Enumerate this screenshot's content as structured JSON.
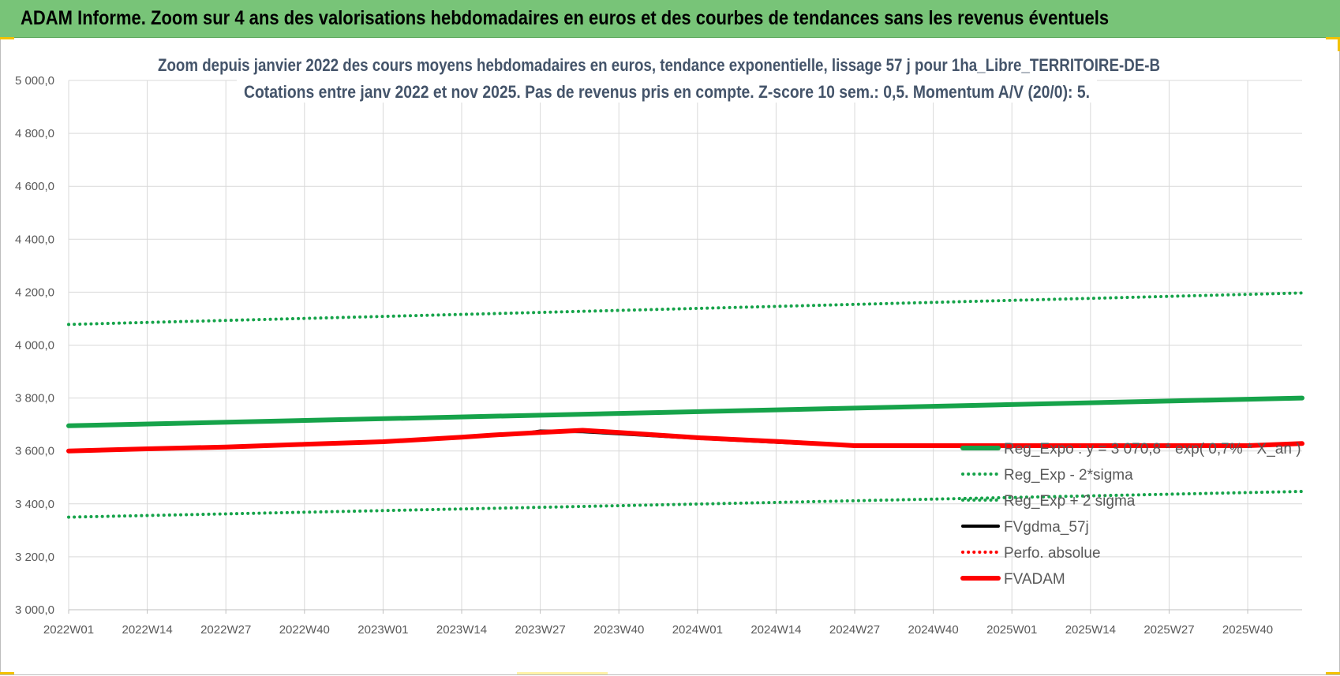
{
  "banner": {
    "title": "ADAM Informe. Zoom sur 4 ans des valorisations hebdomadaires en euros et des courbes de tendances sans les revenus éventuels"
  },
  "colors": {
    "banner_bg": "#78c478",
    "green": "#16a34a",
    "red": "#ff0000",
    "black": "#000000",
    "grid": "#d9d9d9",
    "title_text": "#44546a"
  },
  "chart_data": {
    "type": "line",
    "title_line1": "Zoom depuis janvier 2022 des cours moyens hebdomadaires en euros, tendance exponentielle, lissage 57 j pour 1ha_Libre_TERRITOIRE-DE-B",
    "title_line2": "Cotations entre janv 2022 et nov 2025. Pas de revenus pris en compte. Z-score 10 sem.: 0,5. Momentum A/V (20/0): 5.",
    "x_tick_labels": [
      "2022W01",
      "2022W14",
      "2022W27",
      "2022W40",
      "2023W01",
      "2023W14",
      "2023W27",
      "2023W40",
      "2024W01",
      "2024W14",
      "2024W27",
      "2024W40",
      "2025W01",
      "2025W14",
      "2025W27",
      "2025W40"
    ],
    "x_range_weeks": [
      0,
      204
    ],
    "ylim": [
      3000,
      5000
    ],
    "y_tick_values": [
      3000,
      3200,
      3400,
      3600,
      3800,
      4000,
      4200,
      4400,
      4600,
      4800,
      5000
    ],
    "y_tick_labels": [
      "3 000,0",
      "3 200,0",
      "3 400,0",
      "3 600,0",
      "3 800,0",
      "4 000,0",
      "4 200,0",
      "4 400,0",
      "4 600,0",
      "4 800,0",
      "5 000,0"
    ],
    "grid": true,
    "legend_position": "bottom-right",
    "series": [
      {
        "name": "Reg_Expo : y = 3 070,8 * exp( 0,7% * X_an )",
        "style": "solid-thick",
        "color": "#16a34a",
        "x": [
          0,
          204
        ],
        "y": [
          3695,
          3800
        ]
      },
      {
        "name": "Reg_Exp - 2*sigma",
        "style": "dotted",
        "color": "#16a34a",
        "x": [
          0,
          204
        ],
        "y": [
          3350,
          3447
        ]
      },
      {
        "name": "Reg_Exp + 2 sigma",
        "style": "dotted",
        "color": "#16a34a",
        "x": [
          0,
          204
        ],
        "y": [
          4078,
          4197
        ]
      },
      {
        "name": "FVgdma_57j",
        "style": "solid",
        "color": "#000000",
        "x": [
          0,
          26,
          52,
          65,
          75,
          78,
          85,
          95,
          104,
          117,
          130,
          143,
          156,
          169,
          182,
          195,
          204
        ],
        "y": [
          3600,
          3615,
          3635,
          3652,
          3665,
          3675,
          3673,
          3660,
          3648,
          3633,
          3620,
          3620,
          3620,
          3620,
          3620,
          3620,
          3628
        ]
      },
      {
        "name": "Perfo. absolue",
        "style": "dotted",
        "color": "#ff0000",
        "x": [],
        "y": []
      },
      {
        "name": "FVADAM",
        "style": "solid-thick",
        "color": "#ff0000",
        "x": [
          0,
          13,
          26,
          39,
          52,
          65,
          70,
          78,
          85,
          91,
          104,
          117,
          126,
          130,
          143,
          156,
          169,
          182,
          195,
          204
        ],
        "y": [
          3600,
          3608,
          3615,
          3625,
          3635,
          3652,
          3660,
          3670,
          3678,
          3670,
          3650,
          3636,
          3625,
          3620,
          3620,
          3620,
          3620,
          3620,
          3620,
          3628
        ]
      }
    ]
  }
}
